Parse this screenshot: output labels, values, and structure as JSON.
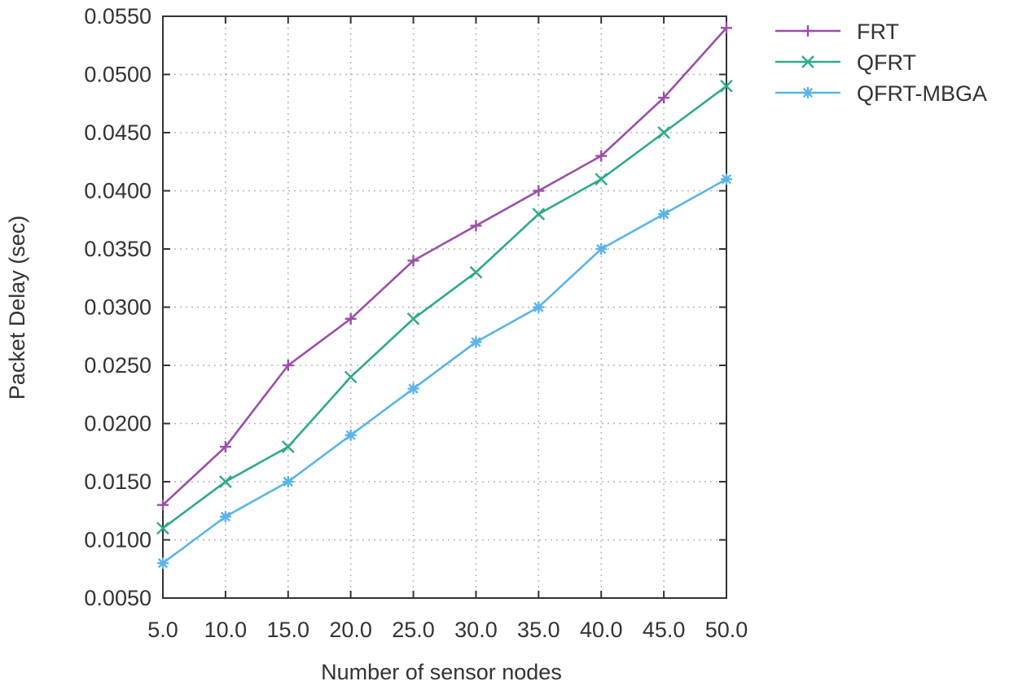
{
  "chart_data": {
    "type": "line",
    "title": "",
    "xlabel": "Number of sensor nodes",
    "ylabel": "Packet Delay (sec)",
    "x": [
      5.0,
      10.0,
      15.0,
      20.0,
      25.0,
      30.0,
      35.0,
      40.0,
      45.0,
      50.0
    ],
    "x_tick_labels": [
      "5.0",
      "10.0",
      "15.0",
      "20.0",
      "25.0",
      "30.0",
      "35.0",
      "40.0",
      "45.0",
      "50.0"
    ],
    "y_ticks": [
      0.005,
      0.01,
      0.015,
      0.02,
      0.025,
      0.03,
      0.035,
      0.04,
      0.045,
      0.05,
      0.055
    ],
    "y_tick_labels": [
      "0.0050",
      "0.0100",
      "0.0150",
      "0.0200",
      "0.0250",
      "0.0300",
      "0.0350",
      "0.0400",
      "0.0450",
      "0.0500",
      "0.0550"
    ],
    "xlim": [
      5.0,
      50.0
    ],
    "ylim": [
      0.005,
      0.055
    ],
    "grid": true,
    "legend_position": "outside-top-right",
    "series": [
      {
        "name": "FRT",
        "color": "#9b4ea8",
        "marker": "plus",
        "values": [
          0.013,
          0.018,
          0.025,
          0.029,
          0.034,
          0.037,
          0.04,
          0.043,
          0.048,
          0.054
        ]
      },
      {
        "name": "QFRT",
        "color": "#2fa98a",
        "marker": "cross",
        "values": [
          0.011,
          0.015,
          0.018,
          0.024,
          0.029,
          0.033,
          0.038,
          0.041,
          0.045,
          0.049
        ]
      },
      {
        "name": "QFRT-MBGA",
        "color": "#5ab4ea",
        "marker": "star",
        "values": [
          0.008,
          0.012,
          0.015,
          0.019,
          0.023,
          0.027,
          0.03,
          0.035,
          0.038,
          0.041
        ]
      }
    ]
  }
}
